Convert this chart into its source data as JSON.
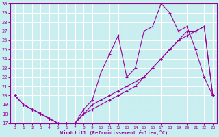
{
  "xlabel": "Windchill (Refroidissement éolien,°C)",
  "bg_color": "#c8eef0",
  "grid_color": "#ffffff",
  "line_color": "#990099",
  "xlim": [
    -0.5,
    23.5
  ],
  "ylim": [
    17,
    30
  ],
  "xticks": [
    0,
    1,
    2,
    3,
    4,
    5,
    6,
    7,
    8,
    9,
    10,
    11,
    12,
    13,
    14,
    15,
    16,
    17,
    18,
    19,
    20,
    21,
    22,
    23
  ],
  "yticks": [
    17,
    18,
    19,
    20,
    21,
    22,
    23,
    24,
    25,
    26,
    27,
    28,
    29,
    30
  ],
  "hours": [
    0,
    1,
    2,
    3,
    4,
    5,
    6,
    7,
    8,
    9,
    10,
    11,
    12,
    13,
    14,
    15,
    16,
    17,
    18,
    19,
    20,
    21,
    22,
    23
  ],
  "line1": [
    20,
    19,
    18.5,
    18,
    17.5,
    17,
    17,
    17,
    18.5,
    19.5,
    22.5,
    24.5,
    26.5,
    22,
    23,
    27,
    27.5,
    30,
    29,
    27,
    27.5,
    25,
    22,
    20
  ],
  "line2": [
    20,
    19,
    18.5,
    18,
    17.5,
    17,
    17,
    17,
    18.0,
    19.0,
    19.5,
    20.0,
    20.5,
    21.0,
    21.5,
    22.0,
    23.0,
    24.0,
    25.0,
    26.0,
    27.0,
    27.0,
    27.5,
    20
  ],
  "line3": [
    20,
    19,
    18.5,
    18,
    17.5,
    17,
    17,
    17,
    18.0,
    18.5,
    19.0,
    19.5,
    20.0,
    20.5,
    21.0,
    22.0,
    23.0,
    24.0,
    25.0,
    26.0,
    26.5,
    27.0,
    27.5,
    20
  ]
}
